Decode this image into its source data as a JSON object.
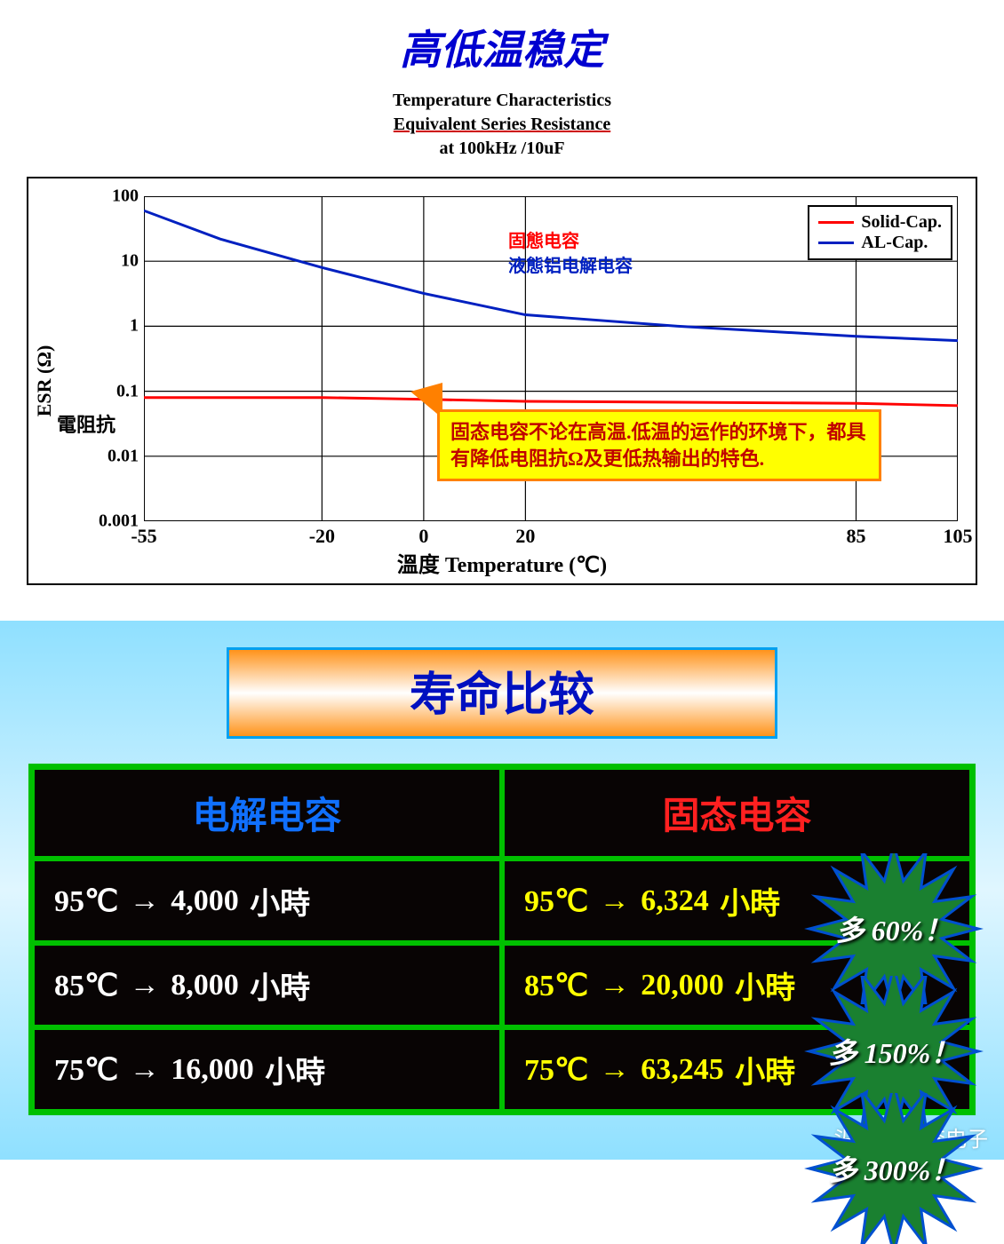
{
  "chart": {
    "title_main": "高低温稳定",
    "subtitle_l1": "Temperature Characteristics",
    "subtitle_l2": "Equivalent Series Resistance",
    "subtitle_l3": "at 100kHz /10uF",
    "y_axis_label": "ESR (Ω)",
    "y_axis_label2": "電阻抗",
    "x_axis_label": "溫度 Temperature (℃)",
    "type": "line",
    "y_scale": "log",
    "y_ticks": [
      100,
      10,
      1,
      0.1,
      0.01,
      0.001
    ],
    "x_ticks": [
      -55,
      -20,
      0,
      20,
      85,
      105
    ],
    "x_range": [
      -55,
      105
    ],
    "series": {
      "solid": {
        "label_cn": "固態电容",
        "legend": "Solid-Cap.",
        "color": "#ff0000",
        "line_width": 3,
        "points": [
          [
            -55,
            0.08
          ],
          [
            -20,
            0.08
          ],
          [
            0,
            0.075
          ],
          [
            20,
            0.07
          ],
          [
            85,
            0.065
          ],
          [
            105,
            0.06
          ]
        ]
      },
      "al": {
        "label_cn": "液態铝电解电容",
        "legend": "AL-Cap.",
        "color": "#0020c0",
        "line_width": 3,
        "points": [
          [
            -55,
            60
          ],
          [
            -40,
            22
          ],
          [
            -20,
            8
          ],
          [
            0,
            3.2
          ],
          [
            20,
            1.5
          ],
          [
            50,
            1.0
          ],
          [
            85,
            0.7
          ],
          [
            105,
            0.6
          ]
        ]
      }
    },
    "grid_color": "#000000",
    "background_color": "#ffffff",
    "callout_text": "固态电容不论在高温.低温的运作的环境下，都具有降低电阻抗Ω及更低热输出的特色.",
    "callout_bg": "#ffff00",
    "callout_border": "#ff8000",
    "callout_text_color": "#c00000"
  },
  "table": {
    "title": "寿命比较",
    "head_left": "电解电容",
    "head_left_color": "#1070ff",
    "head_right": "固态电容",
    "head_right_color": "#ff2020",
    "border_color": "#00c000",
    "bg_color": "#080404",
    "unit": "小時",
    "rows": [
      {
        "temp": "95℃",
        "left_val": "4,000",
        "right_val": "6,324",
        "burst": "多 60%！"
      },
      {
        "temp": "85℃",
        "left_val": "8,000",
        "right_val": "20,000",
        "burst": "多 150%！"
      },
      {
        "temp": "75℃",
        "left_val": "16,000",
        "right_val": "63,245",
        "burst": "多 300%！"
      }
    ],
    "burst_fill": "#1a8030",
    "burst_stroke": "#0050d0"
  },
  "watermark": "头条 @桃李电子"
}
